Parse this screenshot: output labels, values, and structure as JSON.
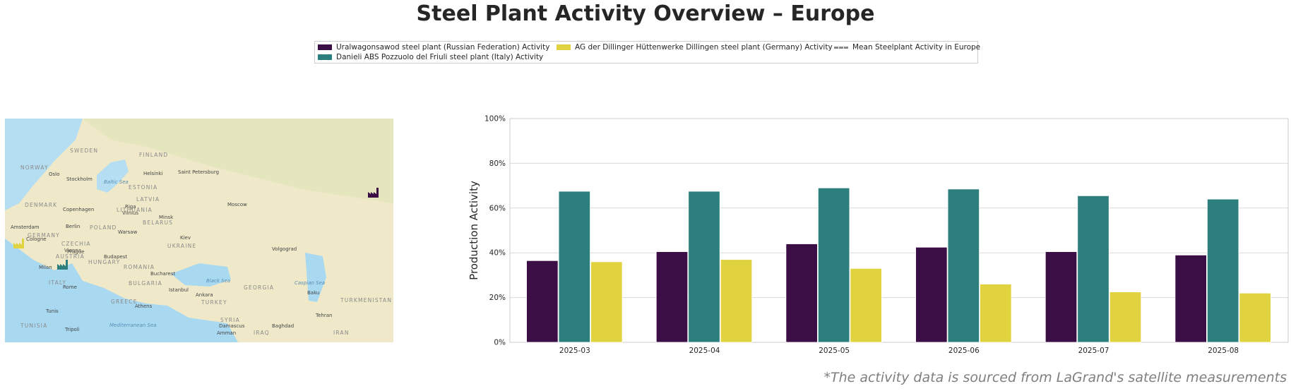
{
  "title": "Steel Plant Activity Overview – Europe",
  "footnote": "*The activity data is sourced from LaGrand's satellite measurements",
  "colors": {
    "uralwagonsawod": "#3b0f46",
    "danieli": "#2c7f7c",
    "dillinger": "#e1d23f",
    "mean": "#888888"
  },
  "legend": {
    "items": [
      {
        "label": "Uralwagonsawod steel plant (Russian Federation) Activity",
        "color": "#3b0f46",
        "kind": "swatch"
      },
      {
        "label": "Danieli ABS Pozzuolo del Friuli steel plant (Italy) Activity",
        "color": "#2c7f7c",
        "kind": "swatch"
      },
      {
        "label": "AG der Dillinger Hüttenwerke Dillingen steel plant (Germany) Activity",
        "color": "#e1d23f",
        "kind": "swatch"
      },
      {
        "label": "Mean Steelplant Activity in Europe",
        "color": "#888888",
        "kind": "dashed-line"
      }
    ]
  },
  "map": {
    "cities": [
      "Oslo",
      "Stockholm",
      "Helsinki",
      "Saint Petersburg",
      "Copenhagen",
      "Riga",
      "Vilnius",
      "Minsk",
      "Moscow",
      "Amsterdam",
      "Berlin",
      "Warsaw",
      "Cologne",
      "Prague",
      "Vienna",
      "Budapest",
      "Kiev",
      "Volgograd",
      "Milan",
      "Bucharest",
      "Rome",
      "Istanbul",
      "Ankara",
      "Baku",
      "Athens",
      "Tunis",
      "Tehran",
      "Tripoli",
      "Damascus",
      "Baghdad",
      "Amman"
    ],
    "countries": [
      "SWEDEN",
      "FINLAND",
      "NORWAY",
      "ESTONIA",
      "LATVIA",
      "LITHUANIA",
      "DENMARK",
      "BELARUS",
      "POLAND",
      "GERMANY",
      "CZECHIA",
      "AUSTRIA",
      "HUNGARY",
      "UKRAINE",
      "ROMANIA",
      "ITALY",
      "BULGARIA",
      "GREECE",
      "TURKEY",
      "GEORGIA",
      "SYRIA",
      "IRAQ",
      "IRAN",
      "TUNISIA",
      "TURKMENISTAN"
    ],
    "seas": [
      "Baltic Sea",
      "Black Sea",
      "Caspian Sea",
      "Mediterranean Sea"
    ]
  },
  "chart_data": {
    "type": "bar",
    "categories": [
      "2025-03",
      "2025-04",
      "2025-05",
      "2025-06",
      "2025-07",
      "2025-08"
    ],
    "series": [
      {
        "name": "Uralwagonsawod steel plant (Russian Federation) Activity",
        "values": [
          36.5,
          40.5,
          44.0,
          42.5,
          40.5,
          39.0
        ]
      },
      {
        "name": "Danieli ABS Pozzuolo del Friuli steel plant (Italy) Activity",
        "values": [
          67.5,
          67.5,
          69.0,
          68.5,
          65.5,
          64.0
        ]
      },
      {
        "name": "AG der Dillinger Hüttenwerke Dillingen steel plant (Germany) Activity",
        "values": [
          36.0,
          37.0,
          33.0,
          26.0,
          22.5,
          22.0
        ]
      }
    ],
    "ylabel": "Production Activity",
    "xlabel": "",
    "ylim": [
      0,
      100
    ],
    "yticks": [
      "0%",
      "20%",
      "40%",
      "60%",
      "80%",
      "100%"
    ],
    "grid": true,
    "legend_position": "top-center"
  }
}
